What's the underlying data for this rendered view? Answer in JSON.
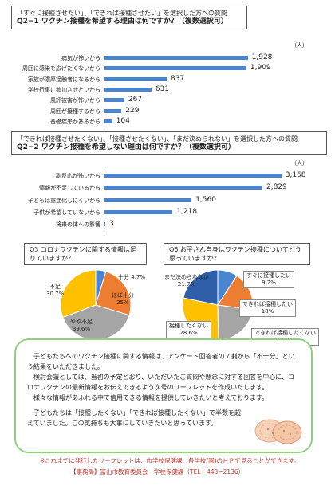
{
  "q2_1": {
    "line1": "「すぐに接種させたい」、「できれば接種させたい」を選択した方への質問",
    "line2": "Q2−1  ワクチン接種を希望する理由は何ですか？（複数選択可）",
    "unit": "（人）"
  },
  "q2_2": {
    "line1": "「できれば接種させたくない」、「接種させたくない」、「まだ決められない」を選択した方への質問",
    "line2": "Q2−2  ワクチン接種を希望しない理由は何ですか？（複数選択可）",
    "unit": "（人）"
  },
  "q3": {
    "title": "Q3  コロナワクチンに関する情報は足りていますか？"
  },
  "q6": {
    "title": "Q6  お子さん自身はワクチン接種についてどう思っていますか？"
  },
  "chart_data": [
    {
      "type": "bar",
      "orientation": "horizontal",
      "categories": [
        "病気が怖いから",
        "周囲に感染を広げたくないから",
        "家族が濃厚接触者になるから",
        "学校行事に参加させたいから",
        "風評被害が怖いから",
        "周囲が接種するから",
        "基礎疾患があるから"
      ],
      "values": [
        1928,
        1909,
        837,
        631,
        267,
        229,
        104
      ],
      "labels": [
        "1,928",
        "1,909",
        "837",
        "631",
        "267",
        "229",
        "104"
      ],
      "xlim": [
        0,
        2200
      ]
    },
    {
      "type": "bar",
      "orientation": "horizontal",
      "categories": [
        "副反応が怖いから",
        "情報が不足しているから",
        "子どもは重症化しにくいから",
        "子供が希望していないから",
        "将来の体への影響"
      ],
      "values": [
        3168,
        2829,
        1560,
        1218,
        3
      ],
      "labels": [
        "3,168",
        "2,829",
        "1,560",
        "1,218",
        "3"
      ],
      "xlim": [
        0,
        3600
      ]
    },
    {
      "type": "pie",
      "slices": [
        {
          "label": "十分",
          "pct": "4.7%",
          "value": 4.7,
          "color": "#4a86cf"
        },
        {
          "label": "ほぼ十分",
          "pct": "25%",
          "value": 25,
          "color": "#ed7d31"
        },
        {
          "label": "やや不足",
          "pct": "39.6%",
          "value": 39.6,
          "color": "#a5a5a5"
        },
        {
          "label": "不足",
          "pct": "30.7%",
          "value": 30.7,
          "color": "#ffc000"
        }
      ]
    },
    {
      "type": "pie",
      "slices": [
        {
          "label": "すぐに接種したい",
          "pct": "9.2%",
          "value": 9.2,
          "color": "#4a86cf"
        },
        {
          "label": "できれば接種したい",
          "pct": "18%",
          "value": 18,
          "color": "#ed7d31"
        },
        {
          "label": "できれば接種したくない",
          "pct": "22.5%",
          "value": 22.5,
          "color": "#a5a5a5"
        },
        {
          "label": "接種したくない",
          "pct": "28.6%",
          "value": 28.6,
          "color": "#ffc000"
        },
        {
          "label": "まだ決められない",
          "pct": "21.7%",
          "value": 21.7,
          "color": "#2e5fa8"
        }
      ]
    }
  ],
  "summary": {
    "p1": "子どもたちへのワクチン接種に関する情報は、アンケート回答者の７割から「不十分」という結果をいただきました。",
    "p2": "検討会議としては、当初の予定どおり、いただいたご質問や懸念に対する回答を中心に、コロナワクチンの最新情報をお伝えできるよう次号のリーフレットを作成いたします。",
    "p3": "様々な情報があふれる中で信用できる情報を提供していきたいと考えております。",
    "p4": "子どもたちは「接種したくない」「できれば接種したくない」で半数を超えていました。この気持ちも大事にしていきたいと思っています。"
  },
  "footer": {
    "note": "※これまでに発行したリーフレットは、市学校保健課、各学校(園)のＨＰで見ることができます。",
    "contact": "【事務局】富山市教育委員会　学校保健課（TEL　443−2136）"
  },
  "colors": {
    "bar": "#4a86cf",
    "frame": "#8fd07f",
    "footer": "#c0392b"
  }
}
